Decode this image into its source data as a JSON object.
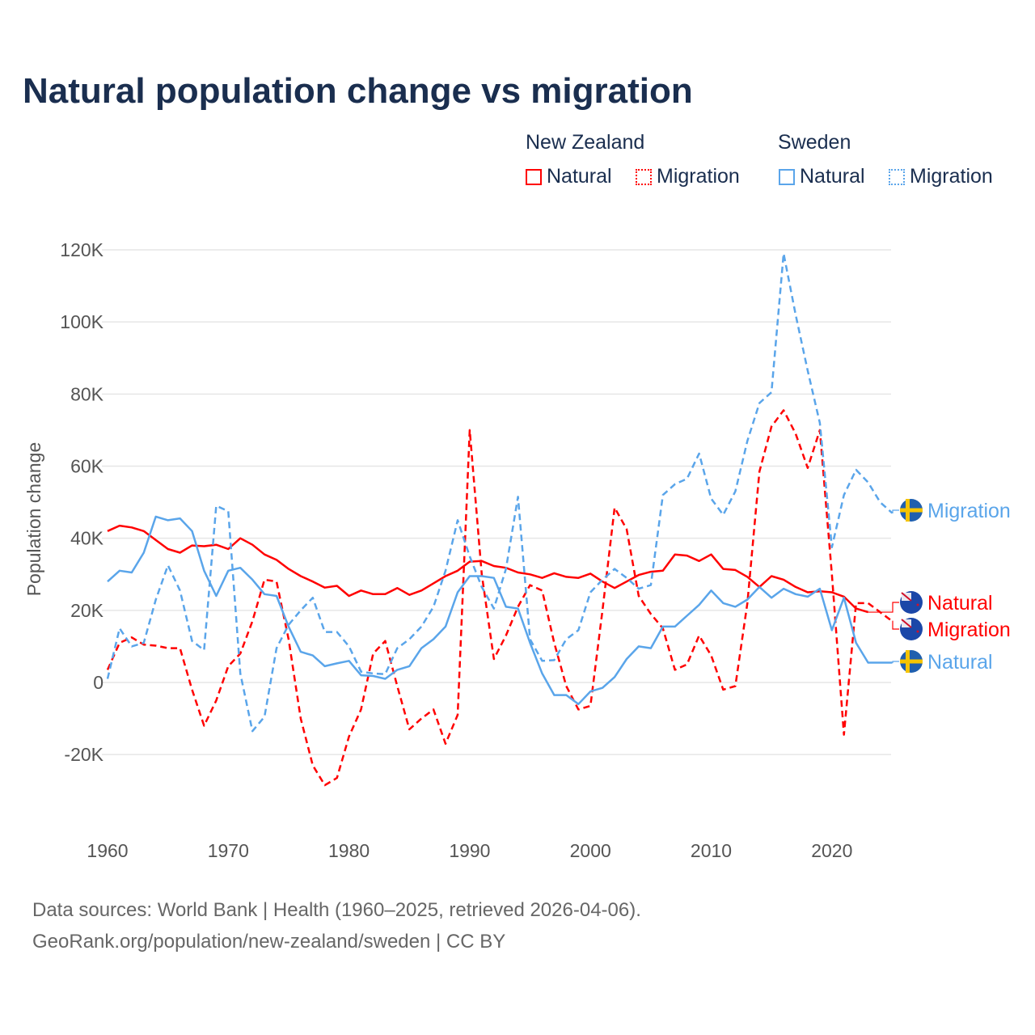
{
  "chart_data": {
    "type": "line",
    "title": "Natural population change vs migration",
    "xlabel": "",
    "ylabel": "Population change",
    "xlim": [
      1960,
      2025
    ],
    "ylim": [
      -30000,
      120000
    ],
    "yticks": [
      -20000,
      0,
      20000,
      40000,
      60000,
      80000,
      100000,
      120000
    ],
    "ytick_labels": [
      "-20K",
      "0",
      "20K",
      "40K",
      "60K",
      "80K",
      "100K",
      "120K"
    ],
    "xticks": [
      1960,
      1970,
      1980,
      1990,
      2000,
      2010,
      2020
    ],
    "xtick_labels": [
      "1960",
      "1970",
      "1980",
      "1990",
      "2000",
      "2010",
      "2020"
    ],
    "grid": true,
    "legend": {
      "placement": "top-right",
      "groups": [
        {
          "label": "New Zealand",
          "items": [
            "Natural",
            "Migration"
          ]
        },
        {
          "label": "Sweden",
          "items": [
            "Natural",
            "Migration"
          ]
        }
      ]
    },
    "x_start": 1960,
    "series": [
      {
        "name": "New Zealand Natural",
        "country": "New Zealand",
        "kind": "Natural",
        "end_label": "Natural",
        "color": "#ff0000",
        "dashed": false,
        "values": [
          42000,
          43500,
          43000,
          42000,
          39500,
          37000,
          36000,
          38000,
          37800,
          38200,
          37000,
          40000,
          38200,
          35500,
          34000,
          31500,
          29500,
          28000,
          26300,
          26800,
          24000,
          25500,
          24500,
          24500,
          26200,
          24300,
          25500,
          27500,
          29500,
          31000,
          33500,
          33700,
          32300,
          31800,
          30500,
          30000,
          29000,
          30300,
          29300,
          29000,
          30200,
          28000,
          26200,
          28000,
          29800,
          30700,
          31000,
          35500,
          35200,
          33700,
          35500,
          31500,
          31200,
          29300,
          26500,
          29500,
          28500,
          26500,
          25000,
          25300,
          25000,
          23800,
          20500,
          19500
        ]
      },
      {
        "name": "New Zealand Migration",
        "country": "New Zealand",
        "kind": "Migration",
        "end_label": "Migration",
        "color": "#ff0000",
        "dashed": true,
        "values": [
          3500,
          11000,
          12500,
          10500,
          10200,
          9500,
          9500,
          -2000,
          -12000,
          -5000,
          4500,
          8000,
          17000,
          28500,
          28000,
          12000,
          -10000,
          -23000,
          -28500,
          -26500,
          -15000,
          -7500,
          8000,
          11500,
          -1000,
          -13000,
          -10000,
          -7500,
          -17000,
          -9000,
          70000,
          30000,
          6500,
          13000,
          21000,
          27000,
          25500,
          11000,
          -1000,
          -7500,
          -6500,
          20000,
          48500,
          42500,
          24000,
          19000,
          15000,
          3500,
          5000,
          13000,
          7500,
          -2000,
          -1000,
          22000,
          58500,
          71000,
          75500,
          69000,
          59500,
          70000,
          30000,
          -14500,
          22000,
          22000,
          19500,
          17000
        ]
      },
      {
        "name": "Sweden Natural",
        "country": "Sweden",
        "kind": "Natural",
        "end_label": "Natural",
        "color": "#5aa5ea",
        "dashed": false,
        "values": [
          28000,
          31000,
          30500,
          36000,
          46000,
          45000,
          45500,
          42000,
          31000,
          24000,
          31000,
          31800,
          28500,
          24500,
          24000,
          15500,
          8500,
          7500,
          4500,
          5300,
          6000,
          2000,
          1800,
          1000,
          3500,
          4500,
          9500,
          12000,
          15500,
          25000,
          29500,
          29500,
          29000,
          21000,
          20500,
          11000,
          2500,
          -3500,
          -3500,
          -6000,
          -2500,
          -1500,
          1500,
          6500,
          10000,
          9500,
          15500,
          15500,
          18500,
          21500,
          25500,
          22000,
          21000,
          23000,
          26500,
          23500,
          26000,
          24500,
          23800,
          26000,
          14500,
          23500,
          11000,
          5500,
          5500,
          5500
        ]
      },
      {
        "name": "Sweden Migration",
        "country": "Sweden",
        "kind": "Migration",
        "end_label": "Migration",
        "color": "#5aa5ea",
        "dashed": true,
        "values": [
          1000,
          15000,
          10000,
          11000,
          23000,
          32500,
          25500,
          11500,
          9000,
          49000,
          47500,
          2500,
          -13500,
          -9500,
          9500,
          16000,
          20000,
          23500,
          14000,
          14000,
          10000,
          3000,
          2500,
          2300,
          9500,
          12000,
          15500,
          21000,
          31000,
          45000,
          35000,
          26500,
          20500,
          31500,
          51500,
          12000,
          6000,
          6200,
          12000,
          14500,
          25000,
          28500,
          31500,
          29000,
          26000,
          27000,
          52000,
          55000,
          56500,
          63500,
          51000,
          46500,
          53000,
          67000,
          77500,
          80500,
          119000,
          102000,
          86500,
          72000,
          37500,
          52000,
          59000,
          55500,
          50000,
          47000
        ]
      }
    ]
  },
  "footer": {
    "line1": "Data sources: World Bank | Health (1960–2025, retrieved 2026-04-06).",
    "line2": "GeoRank.org/population/new-zealand/sweden | CC BY"
  }
}
